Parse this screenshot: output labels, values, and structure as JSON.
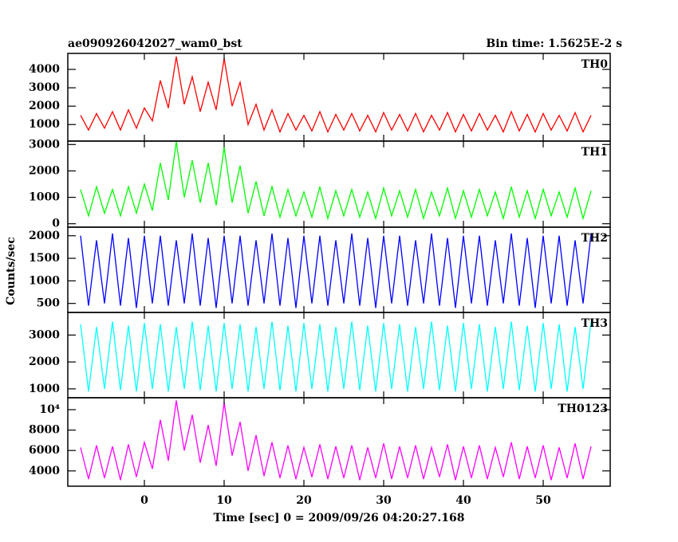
{
  "chart_data": [
    {
      "type": "line",
      "title": "ae090926042027_wam0_bst",
      "subtitle": "Bin time: 1.5625E-2 s",
      "name": "TH0",
      "color": "#ff0000",
      "xlim": [
        -9.6,
        58.4
      ],
      "ylim": [
        100,
        4870
      ],
      "yticks": [
        1000,
        2000,
        3000,
        4000
      ],
      "x": [
        -8,
        -7,
        -6,
        -5,
        -4,
        -3,
        -2,
        -1,
        0,
        1,
        2,
        3,
        4,
        5,
        6,
        7,
        8,
        9,
        10,
        11,
        12,
        13,
        14,
        15,
        16,
        17,
        18,
        19,
        20,
        21,
        22,
        23,
        24,
        25,
        26,
        27,
        28,
        29,
        30,
        31,
        32,
        33,
        34,
        35,
        36,
        37,
        38,
        39,
        40,
        41,
        42,
        43,
        44,
        45,
        46,
        47,
        48,
        49,
        50,
        51,
        52,
        53,
        54,
        55,
        56
      ],
      "values": [
        1500,
        700,
        1600,
        800,
        1700,
        700,
        1800,
        800,
        1900,
        1200,
        3400,
        1900,
        4700,
        2100,
        3600,
        1700,
        3300,
        1800,
        4600,
        2000,
        3300,
        1000,
        2100,
        700,
        1800,
        600,
        1600,
        700,
        1500,
        650,
        1700,
        600,
        1550,
        700,
        1600,
        650,
        1500,
        600,
        1650,
        700,
        1550,
        650,
        1600,
        600,
        1500,
        700,
        1650,
        600,
        1550,
        650,
        1600,
        700,
        1500,
        600,
        1700,
        650,
        1550,
        600,
        1600,
        700,
        1500,
        650,
        1650,
        600,
        1500
      ]
    },
    {
      "type": "line",
      "name": "TH1",
      "color": "#00ff00",
      "xlim": [
        -9.6,
        58.4
      ],
      "ylim": [
        -130,
        3130
      ],
      "yticks": [
        0,
        1000,
        2000,
        3000
      ],
      "x": [
        -8,
        -7,
        -6,
        -5,
        -4,
        -3,
        -2,
        -1,
        0,
        1,
        2,
        3,
        4,
        5,
        6,
        7,
        8,
        9,
        10,
        11,
        12,
        13,
        14,
        15,
        16,
        17,
        18,
        19,
        20,
        21,
        22,
        23,
        24,
        25,
        26,
        27,
        28,
        29,
        30,
        31,
        32,
        33,
        34,
        35,
        36,
        37,
        38,
        39,
        40,
        41,
        42,
        43,
        44,
        45,
        46,
        47,
        48,
        49,
        50,
        51,
        52,
        53,
        54,
        55,
        56
      ],
      "values": [
        1300,
        300,
        1400,
        400,
        1300,
        300,
        1400,
        400,
        1500,
        500,
        2300,
        900,
        3100,
        1000,
        2400,
        800,
        2300,
        700,
        2900,
        800,
        2200,
        400,
        1600,
        300,
        1400,
        250,
        1300,
        300,
        1200,
        250,
        1400,
        200,
        1250,
        300,
        1300,
        250,
        1200,
        200,
        1350,
        300,
        1250,
        250,
        1300,
        200,
        1200,
        300,
        1350,
        200,
        1250,
        250,
        1300,
        300,
        1200,
        200,
        1400,
        250,
        1250,
        200,
        1300,
        300,
        1200,
        250,
        1350,
        200,
        1250
      ]
    },
    {
      "type": "line",
      "name": "TH2",
      "color": "#0000ff",
      "ylabel": "Counts/sec",
      "xlim": [
        -9.6,
        58.4
      ],
      "ylim": [
        300,
        2190
      ],
      "yticks": [
        500,
        1000,
        1500,
        2000
      ],
      "x": [
        -8,
        -7,
        -6,
        -5,
        -4,
        -3,
        -2,
        -1,
        0,
        1,
        2,
        3,
        4,
        5,
        6,
        7,
        8,
        9,
        10,
        11,
        12,
        13,
        14,
        15,
        16,
        17,
        18,
        19,
        20,
        21,
        22,
        23,
        24,
        25,
        26,
        27,
        28,
        29,
        30,
        31,
        32,
        33,
        34,
        35,
        36,
        37,
        38,
        39,
        40,
        41,
        42,
        43,
        44,
        45,
        46,
        47,
        48,
        49,
        50,
        51,
        52,
        53,
        54,
        55,
        56
      ],
      "values": [
        2000,
        450,
        1900,
        500,
        2050,
        450,
        1950,
        400,
        2000,
        500,
        2000,
        450,
        1900,
        500,
        2050,
        450,
        1950,
        400,
        2000,
        500,
        2000,
        450,
        1900,
        500,
        2050,
        450,
        1950,
        400,
        2000,
        500,
        2000,
        450,
        1900,
        500,
        2050,
        450,
        1950,
        400,
        2000,
        500,
        2000,
        450,
        1900,
        500,
        2050,
        450,
        1950,
        400,
        2000,
        500,
        2000,
        450,
        1900,
        500,
        2050,
        450,
        1950,
        400,
        2000,
        500,
        2000,
        450,
        1900,
        500,
        2050
      ]
    },
    {
      "type": "line",
      "name": "TH3",
      "color": "#00ffff",
      "xlim": [
        -9.6,
        58.4
      ],
      "ylim": [
        670,
        3840
      ],
      "yticks": [
        1000,
        2000,
        3000
      ],
      "x": [
        -8,
        -7,
        -6,
        -5,
        -4,
        -3,
        -2,
        -1,
        0,
        1,
        2,
        3,
        4,
        5,
        6,
        7,
        8,
        9,
        10,
        11,
        12,
        13,
        14,
        15,
        16,
        17,
        18,
        19,
        20,
        21,
        22,
        23,
        24,
        25,
        26,
        27,
        28,
        29,
        30,
        31,
        32,
        33,
        34,
        35,
        36,
        37,
        38,
        39,
        40,
        41,
        42,
        43,
        44,
        45,
        46,
        47,
        48,
        49,
        50,
        51,
        52,
        53,
        54,
        55,
        56
      ],
      "values": [
        3400,
        900,
        3300,
        1000,
        3500,
        950,
        3350,
        900,
        3450,
        1000,
        3400,
        900,
        3300,
        1000,
        3500,
        950,
        3350,
        900,
        3450,
        1000,
        3400,
        900,
        3300,
        1000,
        3500,
        950,
        3350,
        900,
        3450,
        1000,
        3400,
        900,
        3300,
        1000,
        3500,
        950,
        3350,
        900,
        3450,
        1000,
        3400,
        900,
        3300,
        1000,
        3500,
        950,
        3350,
        900,
        3450,
        1000,
        3400,
        900,
        3300,
        1000,
        3500,
        950,
        3350,
        900,
        3450,
        1000,
        3400,
        900,
        3300,
        1000,
        3500
      ]
    },
    {
      "type": "line",
      "name": "TH0123",
      "color": "#ff00ff",
      "xlabel": "Time [sec] 0 = 2009/09/26 04:20:27.168",
      "xlim": [
        -9.6,
        58.4
      ],
      "ylim": [
        2500,
        11170
      ],
      "yticks": [
        4000,
        6000,
        8000,
        {
          "value": 10000,
          "label": "10⁴"
        }
      ],
      "xticks": [
        0,
        10,
        20,
        30,
        40,
        50
      ],
      "x": [
        -8,
        -7,
        -6,
        -5,
        -4,
        -3,
        -2,
        -1,
        0,
        1,
        2,
        3,
        4,
        5,
        6,
        7,
        8,
        9,
        10,
        11,
        12,
        13,
        14,
        15,
        16,
        17,
        18,
        19,
        20,
        21,
        22,
        23,
        24,
        25,
        26,
        27,
        28,
        29,
        30,
        31,
        32,
        33,
        34,
        35,
        36,
        37,
        38,
        39,
        40,
        41,
        42,
        43,
        44,
        45,
        46,
        47,
        48,
        49,
        50,
        51,
        52,
        53,
        54,
        55,
        56
      ],
      "values": [
        6300,
        3200,
        6500,
        3300,
        6400,
        3100,
        6600,
        3400,
        6800,
        4200,
        9000,
        5000,
        10900,
        6000,
        9500,
        4800,
        8500,
        4500,
        10700,
        5500,
        8800,
        4000,
        7500,
        3500,
        6800,
        3300,
        6500,
        3200,
        6300,
        3400,
        6600,
        3200,
        6400,
        3300,
        6500,
        3100,
        6300,
        3300,
        6700,
        3200,
        6400,
        3300,
        6500,
        3200,
        6300,
        3400,
        6600,
        3100,
        6400,
        3300,
        6500,
        3200,
        6300,
        3400,
        6800,
        3200,
        6400,
        3300,
        6500,
        3100,
        6300,
        3300,
        6700,
        3200,
        6400
      ]
    }
  ]
}
